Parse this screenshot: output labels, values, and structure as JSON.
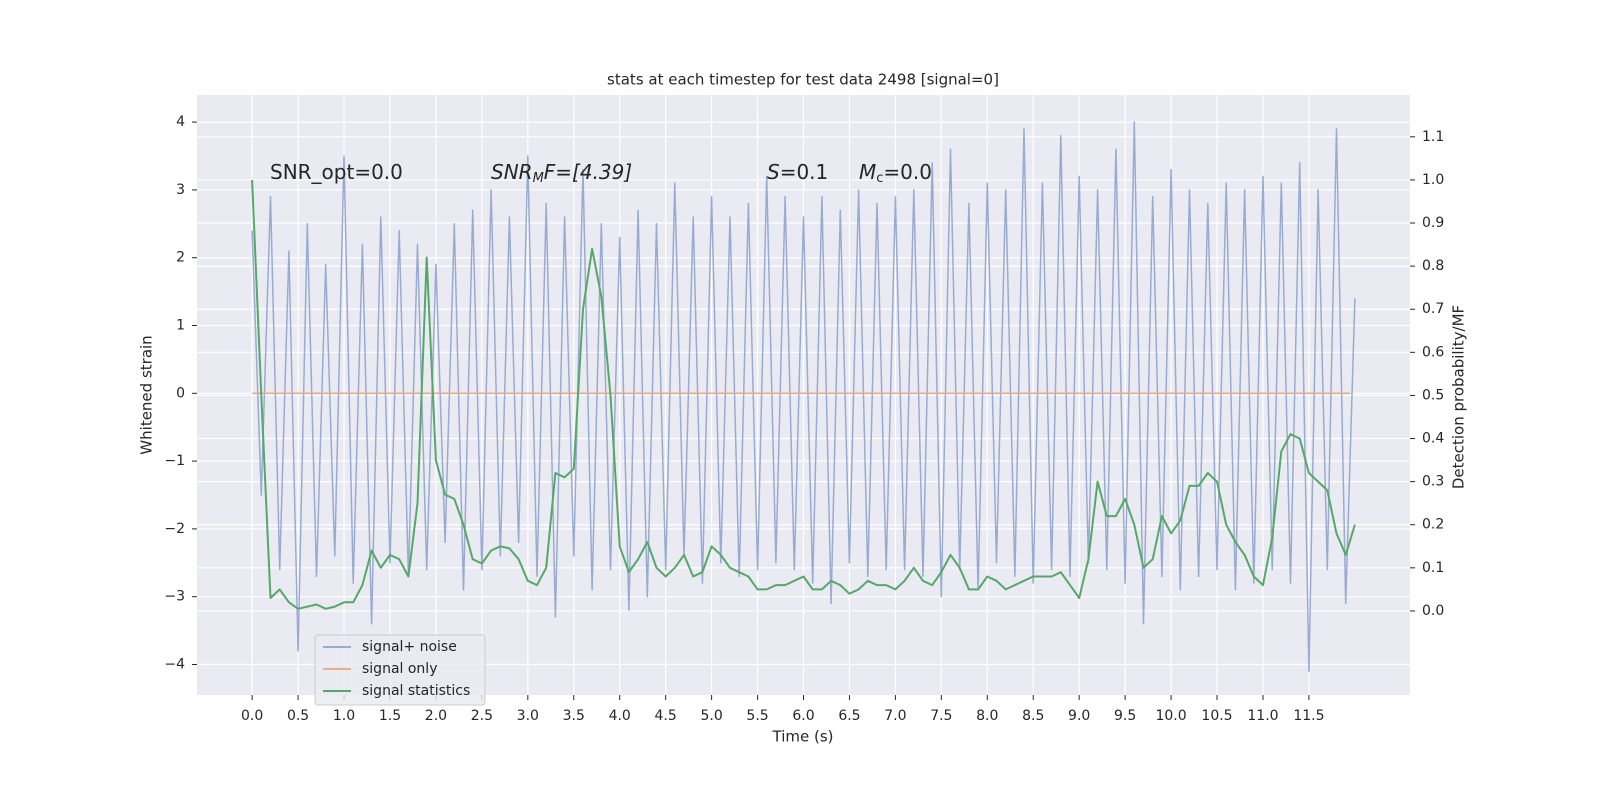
{
  "chart_data": {
    "type": "line",
    "title": "stats at each timestep for test data 2498 [signal=0]",
    "x_label": "Time (s)",
    "y_label": "Whitened strain",
    "y2_label": "Detection probability/MF",
    "annotations": [
      [
        "SNR_opt=0.0"
      ],
      [
        "SNR",
        "M",
        "F=[4.39]"
      ],
      [
        "S",
        "=0.1"
      ],
      [
        "M",
        "c",
        "=0.0"
      ]
    ],
    "x": [
      0.0,
      0.1,
      0.2,
      0.3,
      0.4,
      0.5,
      0.6,
      0.7,
      0.8,
      0.9,
      1.0,
      1.1,
      1.2,
      1.3,
      1.4,
      1.5,
      1.6,
      1.7,
      1.8,
      1.9,
      2.0,
      2.1,
      2.2,
      2.3,
      2.4,
      2.5,
      2.6,
      2.7,
      2.8,
      2.9,
      3.0,
      3.1,
      3.2,
      3.3,
      3.4,
      3.5,
      3.6,
      3.7,
      3.8,
      3.9,
      4.0,
      4.1,
      4.2,
      4.3,
      4.4,
      4.5,
      4.6,
      4.7,
      4.8,
      4.9,
      5.0,
      5.1,
      5.2,
      5.3,
      5.4,
      5.5,
      5.6,
      5.7,
      5.8,
      5.9,
      6.0,
      6.1,
      6.2,
      6.3,
      6.4,
      6.5,
      6.6,
      6.7,
      6.8,
      6.9,
      7.0,
      7.1,
      7.2,
      7.3,
      7.4,
      7.5,
      7.6,
      7.7,
      7.8,
      7.9,
      8.0,
      8.1,
      8.2,
      8.3,
      8.4,
      8.5,
      8.6,
      8.7,
      8.8,
      8.9,
      9.0,
      9.1,
      9.2,
      9.3,
      9.4,
      9.5,
      9.6,
      9.7,
      9.8,
      9.9,
      10.0,
      10.1,
      10.2,
      10.3,
      10.4,
      10.5,
      10.6,
      10.7,
      10.8,
      10.9,
      11.0,
      11.1,
      11.2,
      11.3,
      11.4,
      11.5,
      11.6,
      11.7,
      11.8,
      11.9,
      12.0
    ],
    "series": [
      {
        "name": "signal+ noise",
        "color": "#9aabd1",
        "axis": "y",
        "values": [
          2.4,
          -1.5,
          2.9,
          -2.6,
          2.1,
          -3.8,
          2.5,
          -2.7,
          1.9,
          -2.4,
          3.5,
          -2.8,
          2.2,
          -3.4,
          2.6,
          -2.5,
          2.4,
          -2.7,
          2.2,
          -2.6,
          1.9,
          -2.2,
          2.5,
          -2.9,
          2.7,
          -2.6,
          3.0,
          -2.4,
          2.6,
          -2.2,
          3.5,
          -2.7,
          2.8,
          -3.3,
          2.6,
          -2.4,
          3.3,
          -2.9,
          2.5,
          -2.6,
          2.3,
          -3.2,
          2.7,
          -3.0,
          2.5,
          -2.6,
          3.1,
          -2.4,
          2.6,
          -2.8,
          2.9,
          -2.5,
          2.6,
          -2.7,
          2.8,
          -2.6,
          3.2,
          -2.5,
          2.9,
          -2.6,
          2.6,
          -2.8,
          2.9,
          -3.1,
          2.7,
          -2.5,
          3.0,
          -2.7,
          2.8,
          -2.6,
          2.9,
          -2.6,
          3.0,
          -2.7,
          3.4,
          -3.0,
          3.6,
          -2.6,
          2.8,
          -2.9,
          3.1,
          -2.5,
          3.0,
          -2.7,
          3.9,
          -2.8,
          3.1,
          -2.6,
          3.8,
          -2.7,
          3.2,
          -2.5,
          3.0,
          -2.6,
          3.6,
          -2.8,
          4.0,
          -3.4,
          2.9,
          -2.7,
          3.3,
          -2.9,
          3.0,
          -2.7,
          2.8,
          -2.6,
          3.1,
          -2.9,
          3.0,
          -2.8,
          3.2,
          -2.6,
          3.1,
          -2.8,
          3.4,
          -4.1,
          3.0,
          -2.6,
          3.9,
          -3.1,
          1.4
        ]
      },
      {
        "name": "signal only",
        "color": "#e8ab8c",
        "axis": "y",
        "x": [
          0.0,
          11.95
        ],
        "values": [
          0,
          0
        ]
      },
      {
        "name": "signal statistics",
        "color": "#55a868",
        "axis": "y2",
        "values": [
          1.0,
          0.5,
          0.03,
          0.05,
          0.02,
          0.005,
          0.01,
          0.015,
          0.005,
          0.01,
          0.02,
          0.02,
          0.06,
          0.14,
          0.1,
          0.13,
          0.12,
          0.08,
          0.25,
          0.82,
          0.35,
          0.27,
          0.26,
          0.2,
          0.12,
          0.11,
          0.14,
          0.15,
          0.145,
          0.12,
          0.07,
          0.06,
          0.1,
          0.32,
          0.31,
          0.33,
          0.7,
          0.84,
          0.73,
          0.5,
          0.15,
          0.09,
          0.12,
          0.16,
          0.1,
          0.08,
          0.1,
          0.13,
          0.08,
          0.09,
          0.15,
          0.13,
          0.1,
          0.09,
          0.08,
          0.05,
          0.05,
          0.06,
          0.06,
          0.07,
          0.08,
          0.05,
          0.05,
          0.07,
          0.06,
          0.04,
          0.05,
          0.07,
          0.06,
          0.06,
          0.05,
          0.07,
          0.1,
          0.07,
          0.06,
          0.09,
          0.13,
          0.1,
          0.05,
          0.05,
          0.08,
          0.07,
          0.05,
          0.06,
          0.07,
          0.08,
          0.08,
          0.08,
          0.09,
          0.06,
          0.03,
          0.12,
          0.3,
          0.22,
          0.22,
          0.26,
          0.2,
          0.1,
          0.12,
          0.22,
          0.18,
          0.21,
          0.29,
          0.29,
          0.32,
          0.3,
          0.2,
          0.16,
          0.13,
          0.08,
          0.06,
          0.17,
          0.37,
          0.41,
          0.4,
          0.32,
          0.3,
          0.28,
          0.18,
          0.13,
          0.2
        ]
      }
    ],
    "xlim": [
      -0.6,
      12.6
    ],
    "xticks": [
      {
        "value": 0,
        "label": "0.0"
      },
      0.5,
      {
        "value": 1,
        "label": "1.0"
      },
      1.5,
      {
        "value": 2,
        "label": "2.0"
      },
      2.5,
      {
        "value": 3,
        "label": "3.0"
      },
      3.5,
      {
        "value": 4,
        "label": "4.0"
      },
      4.5,
      {
        "value": 5,
        "label": "5.0"
      },
      5.5,
      {
        "value": 6,
        "label": "6.0"
      },
      6.5,
      {
        "value": 7,
        "label": "7.0"
      },
      7.5,
      {
        "value": 8,
        "label": "8.0"
      },
      8.5,
      {
        "value": 9,
        "label": "9.0"
      },
      9.5,
      {
        "value": 10,
        "label": "10.0"
      },
      10.5,
      {
        "value": 11,
        "label": "11.0"
      },
      11.5
    ],
    "ylim": [
      -4.45,
      4.4
    ],
    "yticks": [
      {
        "value": -4,
        "label": "−4"
      },
      {
        "value": -3,
        "label": "−3"
      },
      {
        "value": -2,
        "label": "−2"
      },
      {
        "value": -1,
        "label": "−1"
      },
      0,
      1,
      2,
      3,
      4
    ],
    "y2lim": [
      -0.195,
      1.197
    ],
    "y2ticks": [
      {
        "value": 0,
        "label": "0.0"
      },
      0.1,
      0.2,
      0.3,
      0.4,
      0.5,
      0.6,
      0.7,
      0.8,
      0.9,
      {
        "value": 1,
        "label": "1.0"
      },
      1.1
    ],
    "grid": true,
    "legend": "lower left"
  }
}
